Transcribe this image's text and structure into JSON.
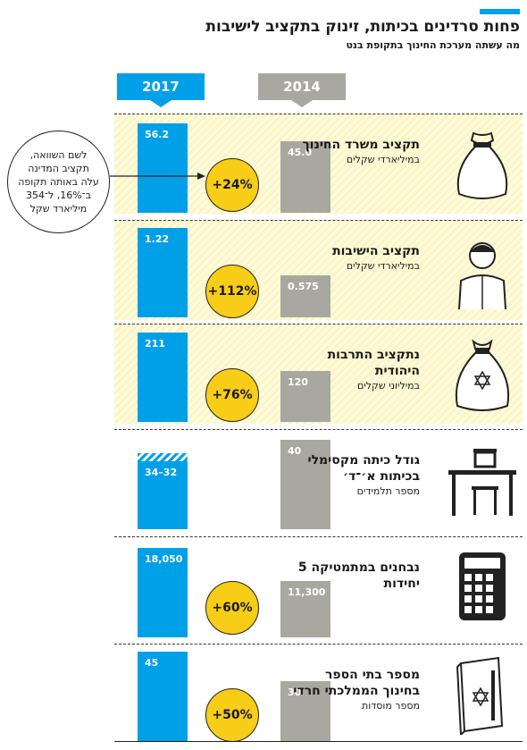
{
  "header": {
    "title": "פחות סרדינים בכיתות, זינוק בתקציב לישיבות",
    "subtitle": "מה עשתה מערכת החינוך בתקופת בנט"
  },
  "chart_data": {
    "type": "bar",
    "series": [
      {
        "name": "2017",
        "color": "#00a0e9"
      },
      {
        "name": "2014",
        "color": "#a8a8a0"
      }
    ],
    "categories": [
      {
        "name": "תקציב משרד החינוך",
        "unit": "במיליארדי שקלים",
        "v2017": 56.2,
        "v2014": 45.0,
        "label2017": "56.2",
        "label2014": "45.0",
        "change": "+24%",
        "icon": "money-sack-icon"
      },
      {
        "name": "תקציב הישיבות",
        "unit": "במיליארדי שקלים",
        "v2017": 1.22,
        "v2014": 0.575,
        "label2017": "1.22",
        "label2014": "0.575",
        "change": "+112%",
        "icon": "yeshiva-student-icon"
      },
      {
        "name": "נתקציב התרבות היהודית",
        "unit": "במיליוני שקלים",
        "v2017": 211,
        "v2014": 120,
        "label2017": "211",
        "label2014": "120",
        "change": "+76%",
        "icon": "star-of-david-sack-icon"
      },
      {
        "name": "גודל כיתה מקסימלי בכיתות א׳־ד׳",
        "unit": "מספר תלמידים",
        "v2017": [
          32,
          34
        ],
        "v2014": 40,
        "label2017": "34–32",
        "label2014": "40",
        "change": "",
        "icon": "school-desk-icon"
      },
      {
        "name": "נבחנים במתמטיקה 5 יחידות",
        "unit": "",
        "v2017": 18050,
        "v2014": 11300,
        "label2017": "18,050",
        "label2014": "11,300",
        "change": "+60%",
        "icon": "calculator-icon"
      },
      {
        "name": "מספר בתי הספר בחינוך הממלכתי חרדי",
        "unit": "מספר מוסדות",
        "v2017": 45,
        "v2014": 30,
        "label2017": "45",
        "label2014": "30",
        "change": "+50%",
        "icon": "book-icon"
      }
    ]
  },
  "note": {
    "lines": [
      "לשם השוואה,",
      "תקציב המדינה",
      "עלה באותה תקופה",
      "ב־16%, ל־354",
      "מיליארד שקל"
    ]
  }
}
